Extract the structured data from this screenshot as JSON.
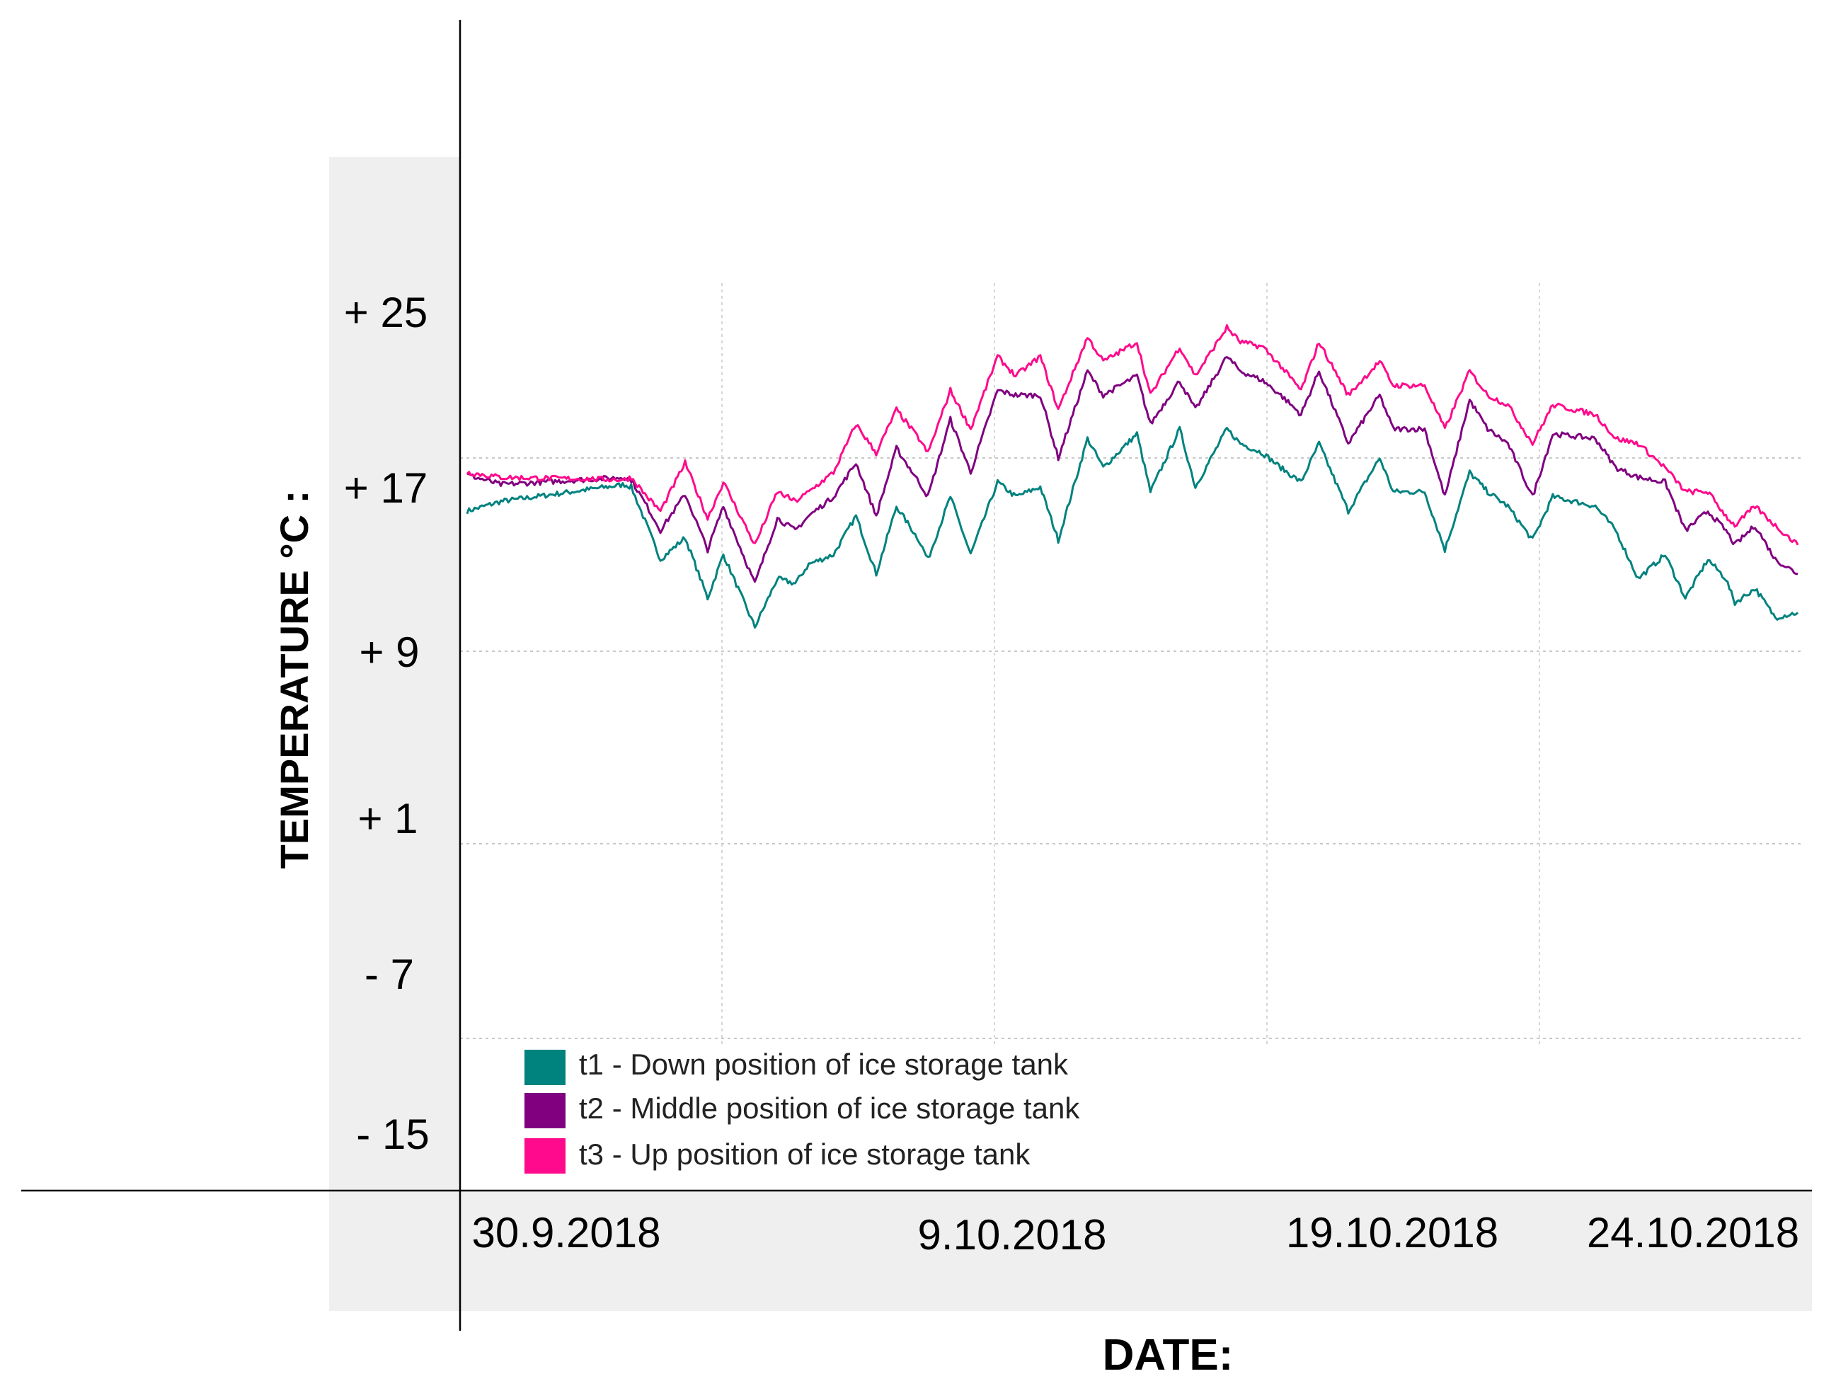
{
  "chart_data": {
    "type": "line",
    "title": "",
    "ylabel": "TEMPERATURE  °C :",
    "xlabel": "DATE:",
    "y_ticks": [
      "+ 25",
      "+ 17",
      "+ 9",
      "+ 1",
      "- 7",
      "- 15"
    ],
    "x_ticks": [
      "30.9.2018",
      "9.10.2018",
      "19.10.2018",
      "24.10.2018"
    ],
    "ylim": [
      -15,
      25
    ],
    "grid": "dotted",
    "legend_position": "bottom-left",
    "series": [
      {
        "name": "t1 - Down position of ice storage tank",
        "color": "#00827f",
        "points": [
          [
            0,
            14.8
          ],
          [
            1.5,
            15.2
          ],
          [
            7,
            15.9
          ],
          [
            7.3,
            15.8
          ],
          [
            8,
            14.2
          ],
          [
            8.6,
            12.8
          ],
          [
            9.7,
            13.7
          ],
          [
            10.7,
            11.2
          ],
          [
            11.4,
            13.0
          ],
          [
            12.8,
            10.0
          ],
          [
            13.8,
            12.0
          ],
          [
            14.6,
            11.8
          ],
          [
            15.2,
            12.6
          ],
          [
            16.3,
            13.0
          ],
          [
            17.3,
            14.6
          ],
          [
            18.2,
            12.2
          ],
          [
            19.1,
            15.0
          ],
          [
            20.1,
            13.6
          ],
          [
            20.5,
            12.8
          ],
          [
            21.5,
            15.4
          ],
          [
            22.4,
            13.0
          ],
          [
            23.6,
            16.0
          ],
          [
            24.4,
            15.4
          ],
          [
            25.5,
            15.8
          ],
          [
            26.3,
            13.6
          ],
          [
            27.6,
            17.8
          ],
          [
            28.3,
            16.6
          ],
          [
            29.8,
            18.0
          ],
          [
            30.4,
            15.6
          ],
          [
            31.7,
            18.2
          ],
          [
            32.4,
            15.8
          ],
          [
            33.8,
            18.2
          ],
          [
            34.4,
            17.6
          ],
          [
            35.4,
            17.2
          ],
          [
            36.2,
            16.6
          ],
          [
            37.1,
            16.0
          ],
          [
            37.9,
            17.6
          ],
          [
            39.2,
            14.8
          ],
          [
            40.6,
            17.0
          ],
          [
            41.2,
            15.6
          ],
          [
            42.6,
            15.6
          ],
          [
            43.5,
            13.2
          ],
          [
            44.6,
            16.4
          ],
          [
            45.4,
            15.6
          ],
          [
            46.3,
            15.0
          ],
          [
            47.4,
            13.6
          ],
          [
            48.3,
            15.4
          ],
          [
            50.2,
            15.0
          ],
          [
            51.1,
            14.0
          ],
          [
            52.1,
            12.0
          ],
          [
            53.3,
            13.0
          ],
          [
            54.2,
            11.2
          ],
          [
            55.2,
            12.8
          ],
          [
            56.0,
            12.0
          ],
          [
            56.4,
            11.0
          ],
          [
            57.3,
            11.6
          ],
          [
            58.2,
            10.4
          ],
          [
            59.2,
            10.6
          ]
        ]
      },
      {
        "name": "t2 - Middle position of ice storage tank",
        "color": "#800080",
        "points": [
          [
            0,
            16.3
          ],
          [
            1.5,
            15.9
          ],
          [
            7,
            16.2
          ],
          [
            7.3,
            16.1
          ],
          [
            8,
            15.0
          ],
          [
            8.6,
            14.0
          ],
          [
            9.7,
            15.5
          ],
          [
            10.7,
            13.2
          ],
          [
            11.4,
            15.0
          ],
          [
            12.8,
            11.8
          ],
          [
            13.8,
            14.5
          ],
          [
            14.6,
            14.0
          ],
          [
            15.2,
            14.6
          ],
          [
            16.3,
            15.4
          ],
          [
            17.3,
            16.8
          ],
          [
            18.2,
            14.6
          ],
          [
            19.1,
            17.4
          ],
          [
            20.1,
            16.0
          ],
          [
            20.5,
            15.4
          ],
          [
            21.5,
            18.6
          ],
          [
            22.4,
            16.4
          ],
          [
            23.6,
            19.8
          ],
          [
            24.4,
            19.6
          ],
          [
            25.5,
            19.6
          ],
          [
            26.3,
            17.0
          ],
          [
            27.6,
            20.6
          ],
          [
            28.3,
            19.6
          ],
          [
            29.8,
            20.4
          ],
          [
            30.4,
            18.4
          ],
          [
            31.7,
            20.2
          ],
          [
            32.4,
            19.0
          ],
          [
            33.8,
            21.2
          ],
          [
            34.4,
            20.6
          ],
          [
            35.4,
            20.2
          ],
          [
            36.2,
            19.6
          ],
          [
            37.1,
            18.8
          ],
          [
            37.9,
            20.6
          ],
          [
            39.2,
            17.6
          ],
          [
            40.6,
            19.6
          ],
          [
            41.2,
            18.2
          ],
          [
            42.6,
            18.2
          ],
          [
            43.5,
            15.4
          ],
          [
            44.6,
            19.4
          ],
          [
            45.4,
            18.2
          ],
          [
            46.3,
            17.6
          ],
          [
            47.4,
            15.4
          ],
          [
            48.3,
            18.0
          ],
          [
            50.2,
            17.8
          ],
          [
            51.1,
            16.6
          ],
          [
            52.1,
            16.2
          ],
          [
            53.3,
            16.0
          ],
          [
            54.2,
            14.0
          ],
          [
            55.2,
            14.8
          ],
          [
            56.0,
            14.0
          ],
          [
            56.4,
            13.4
          ],
          [
            57.3,
            14.2
          ],
          [
            58.2,
            12.8
          ],
          [
            59.2,
            12.2
          ]
        ]
      },
      {
        "name": "t3 - Up position of ice storage tank",
        "color": "#ff0a8c",
        "points": [
          [
            0,
            16.4
          ],
          [
            1.5,
            16.2
          ],
          [
            7,
            16.1
          ],
          [
            7.3,
            16.2
          ],
          [
            8,
            15.4
          ],
          [
            8.6,
            14.8
          ],
          [
            9.7,
            16.8
          ],
          [
            10.7,
            14.5
          ],
          [
            11.4,
            16.0
          ],
          [
            12.8,
            13.4
          ],
          [
            13.8,
            15.6
          ],
          [
            14.6,
            15.2
          ],
          [
            15.2,
            15.6
          ],
          [
            16.3,
            16.4
          ],
          [
            17.3,
            18.4
          ],
          [
            18.2,
            17.2
          ],
          [
            19.1,
            19.0
          ],
          [
            20.1,
            17.8
          ],
          [
            20.5,
            17.2
          ],
          [
            21.5,
            19.8
          ],
          [
            22.4,
            18.2
          ],
          [
            23.6,
            21.2
          ],
          [
            24.4,
            20.4
          ],
          [
            25.5,
            21.2
          ],
          [
            26.3,
            19.0
          ],
          [
            27.6,
            22.0
          ],
          [
            28.3,
            21.0
          ],
          [
            29.8,
            21.8
          ],
          [
            30.4,
            19.6
          ],
          [
            31.7,
            21.6
          ],
          [
            32.4,
            20.4
          ],
          [
            33.8,
            22.4
          ],
          [
            34.4,
            21.8
          ],
          [
            35.4,
            21.6
          ],
          [
            36.2,
            20.8
          ],
          [
            37.1,
            19.8
          ],
          [
            37.9,
            21.8
          ],
          [
            39.2,
            19.6
          ],
          [
            40.6,
            21.0
          ],
          [
            41.2,
            20.0
          ],
          [
            42.6,
            20.0
          ],
          [
            43.5,
            18.2
          ],
          [
            44.6,
            20.6
          ],
          [
            45.4,
            19.6
          ],
          [
            46.3,
            19.2
          ],
          [
            47.4,
            17.6
          ],
          [
            48.3,
            19.2
          ],
          [
            50.2,
            18.8
          ],
          [
            51.1,
            17.8
          ],
          [
            52.1,
            17.6
          ],
          [
            53.3,
            16.6
          ],
          [
            54.2,
            15.6
          ],
          [
            55.2,
            15.6
          ],
          [
            56.0,
            14.6
          ],
          [
            56.4,
            14.2
          ],
          [
            57.3,
            15.0
          ],
          [
            58.2,
            14.2
          ],
          [
            59.2,
            13.4
          ]
        ]
      }
    ]
  }
}
